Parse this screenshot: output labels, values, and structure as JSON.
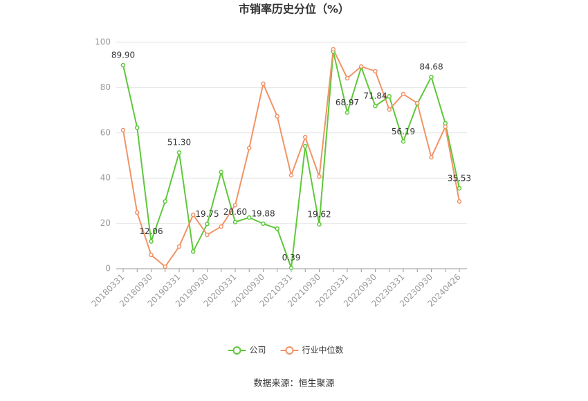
{
  "chart_data": {
    "type": "line",
    "title": "市销率历史分位（%）",
    "source": "数据来源：恒生聚源",
    "categories": [
      "20180331",
      null,
      "20180930",
      null,
      "20190331",
      null,
      "20190930",
      null,
      "20200331",
      null,
      "20200930",
      null,
      "20210331",
      null,
      "20210930",
      null,
      "20220331",
      null,
      "20220930",
      null,
      "20230331",
      null,
      "20230930",
      null,
      "20240426"
    ],
    "series": [
      {
        "name": "公司",
        "color": "#5ec83a",
        "values": [
          89.9,
          62.3,
          12.06,
          29.7,
          51.3,
          7.6,
          19.75,
          42.7,
          20.6,
          22.6,
          19.88,
          17.7,
          0.39,
          54.1,
          19.62,
          95.9,
          68.97,
          89.0,
          71.84,
          76.1,
          56.19,
          72.8,
          84.68,
          64.2,
          35.53
        ],
        "value_labels": [
          "89.90",
          null,
          "12.06",
          null,
          "51.30",
          null,
          "19.75",
          null,
          "20.60",
          null,
          "19.88",
          null,
          "0.39",
          null,
          "19.62",
          null,
          "68.97",
          null,
          "71.84",
          null,
          "56.19",
          null,
          "84.68",
          null,
          "35.53"
        ]
      },
      {
        "name": "行业中位数",
        "color": "#f29266",
        "values": [
          61.2,
          24.8,
          6.1,
          0.9,
          9.8,
          23.8,
          15.0,
          18.6,
          28.1,
          53.3,
          81.7,
          67.3,
          41.3,
          58.1,
          40.7,
          96.9,
          84.1,
          89.3,
          87.2,
          70.3,
          77.1,
          73.1,
          49.2,
          62.7,
          29.7
        ]
      }
    ],
    "ylim": [
      0,
      100
    ],
    "yticks": [
      0,
      20,
      40,
      60,
      80,
      100
    ],
    "grid": true,
    "legend": "bottom"
  }
}
